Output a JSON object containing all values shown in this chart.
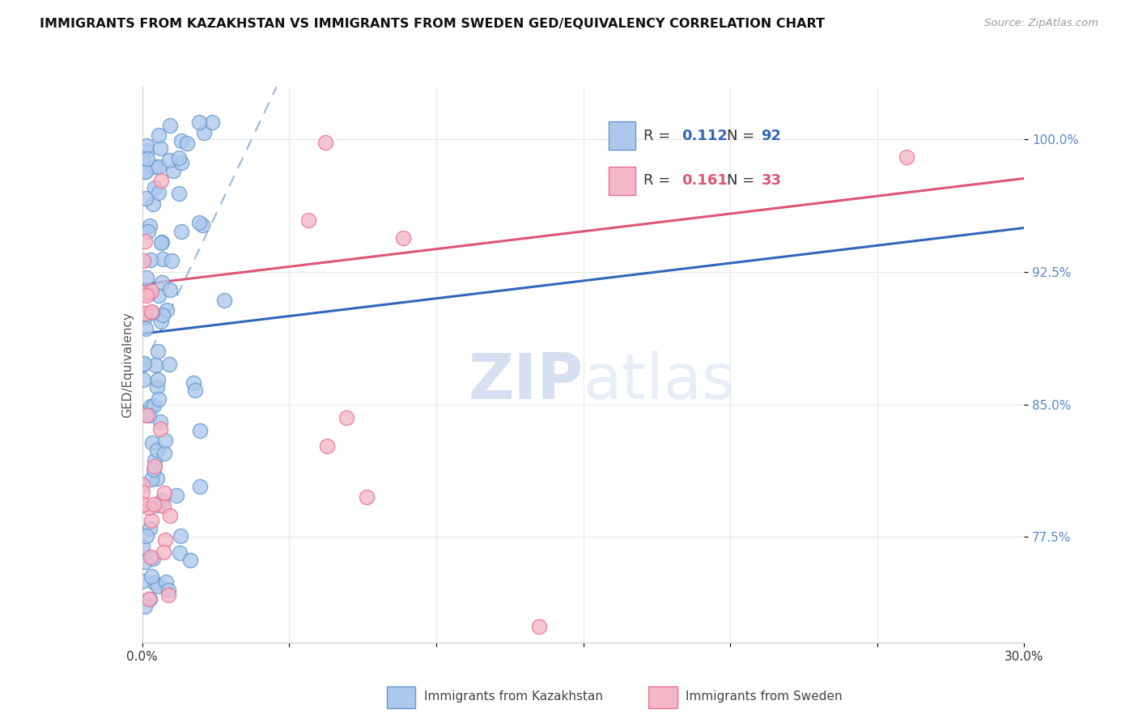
{
  "title": "IMMIGRANTS FROM KAZAKHSTAN VS IMMIGRANTS FROM SWEDEN GED/EQUIVALENCY CORRELATION CHART",
  "source": "Source: ZipAtlas.com",
  "ylabel": "GED/Equivalency",
  "ytick_labels": [
    "100.0%",
    "92.5%",
    "85.0%",
    "77.5%"
  ],
  "ytick_values": [
    1.0,
    0.925,
    0.85,
    0.775
  ],
  "xmin": 0.0,
  "xmax": 0.3,
  "ymin": 0.715,
  "ymax": 1.03,
  "legend_r1": "R = 0.112",
  "legend_n1": "N = 92",
  "legend_r2": "R = 0.161",
  "legend_n2": "N = 33",
  "color_blue_fill": "#adc8ed",
  "color_blue_edge": "#6699cc",
  "color_pink_fill": "#f5b8c8",
  "color_pink_edge": "#e87090",
  "color_blue_line": "#3366bb",
  "color_pink_line": "#dd5577",
  "color_blue_dashed": "#88aadd",
  "color_legend_r": "#3366bb",
  "color_legend_n": "#3366bb",
  "color_legend_r2": "#dd5577",
  "color_legend_n2": "#dd5577",
  "watermark_zip_color": "#c0d0e8",
  "watermark_atlas_color": "#d0dff0",
  "background_color": "#ffffff",
  "grid_color": "#e8e8e8",
  "ytick_color": "#5588cc",
  "xtick_color": "#333333"
}
